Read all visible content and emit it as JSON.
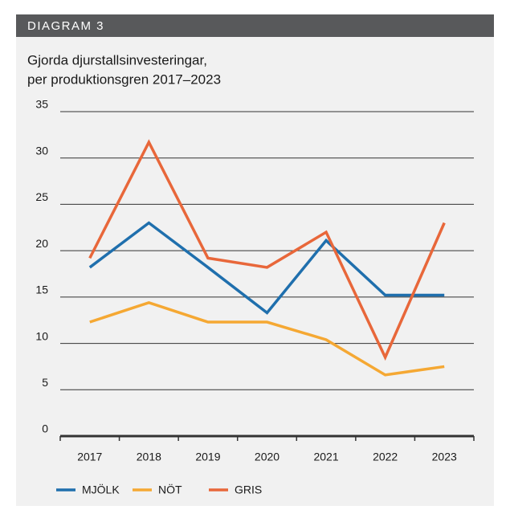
{
  "header": "DIAGRAM 3",
  "chart_data": {
    "type": "line",
    "title": "Gjorda djurstallsinvesteringar,",
    "subtitle": "per produktionsgren 2017–2023",
    "categories": [
      "2017",
      "2018",
      "2019",
      "2020",
      "2021",
      "2022",
      "2023"
    ],
    "series": [
      {
        "name": "MJÖLK",
        "color": "#1f6fad",
        "values": [
          18.2,
          23,
          18.2,
          13.3,
          21.1,
          15.2,
          15.2
        ]
      },
      {
        "name": "NÖT",
        "color": "#f5a833",
        "values": [
          12.3,
          14.4,
          12.3,
          12.3,
          10.4,
          6.6,
          7.5
        ]
      },
      {
        "name": "GRIS",
        "color": "#e8673a",
        "values": [
          19.2,
          31.7,
          19.2,
          18.2,
          22,
          8.5,
          23
        ]
      }
    ],
    "ylim": [
      0,
      35
    ],
    "yticks": [
      0,
      5,
      10,
      15,
      20,
      25,
      30,
      35
    ],
    "grid": true
  }
}
